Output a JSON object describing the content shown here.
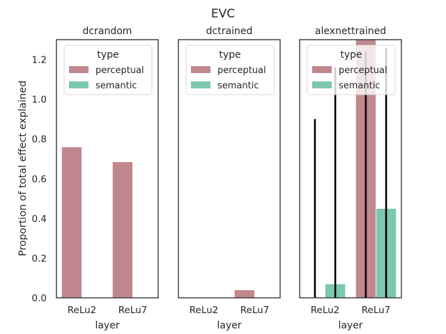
{
  "figure": {
    "suptitle": "EVC",
    "ylabel": "Proportion of total effect explained"
  },
  "legend": {
    "title": "type",
    "entries": [
      {
        "label": "perceptual",
        "color": "#c0888e"
      },
      {
        "label": "semantic",
        "color": "#7dc7b0"
      }
    ]
  },
  "chart_data": [
    {
      "type": "bar",
      "title": "dcrandom",
      "xlabel": "layer",
      "ylabel": "Proportion of total effect explained",
      "categories": [
        "ReLu2",
        "ReLu7"
      ],
      "ylim": [
        0,
        1.3
      ],
      "yticks": [
        "0.0",
        "0.2",
        "0.4",
        "0.6",
        "0.8",
        "1.0",
        "1.2"
      ],
      "grid": false,
      "legend_position": "upper-center",
      "series": [
        {
          "name": "perceptual",
          "values": [
            0.76,
            0.685
          ],
          "color": "#c0888e"
        },
        {
          "name": "semantic",
          "values": [
            0,
            0
          ],
          "color": "#7dc7b0"
        }
      ]
    },
    {
      "type": "bar",
      "title": "dctrained",
      "xlabel": "layer",
      "categories": [
        "ReLu2",
        "ReLu7"
      ],
      "ylim": [
        0,
        1.3
      ],
      "grid": false,
      "legend_position": "upper-center",
      "series": [
        {
          "name": "perceptual",
          "values": [
            0,
            0.04
          ],
          "color": "#c0888e"
        },
        {
          "name": "semantic",
          "values": [
            0,
            0
          ],
          "color": "#7dc7b0"
        }
      ]
    },
    {
      "type": "bar",
      "title": "alexnettrained",
      "xlabel": "layer",
      "categories": [
        "ReLu2",
        "ReLu7"
      ],
      "ylim": [
        0,
        1.3
      ],
      "grid": false,
      "legend_position": "upper-center",
      "series": [
        {
          "name": "perceptual",
          "values": [
            0,
            1.3
          ],
          "color": "#c0888e",
          "error_bars": [
            {
              "low": 0,
              "high": 0.9
            },
            {
              "low": 0,
              "high": 1.24
            }
          ]
        },
        {
          "name": "semantic",
          "values": [
            0.07,
            0.45
          ],
          "color": "#7dc7b0",
          "error_bars": [
            {
              "low": 0,
              "high": 1.16
            },
            {
              "low": 0,
              "high": 1.26
            }
          ]
        }
      ]
    }
  ]
}
